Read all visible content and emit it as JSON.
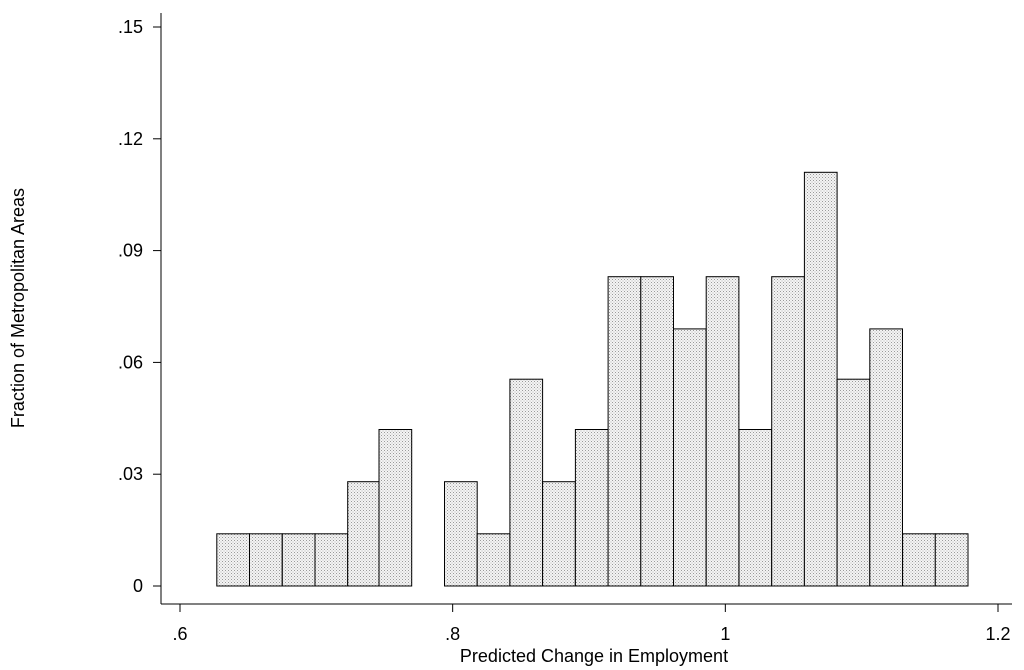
{
  "chart_data": {
    "type": "bar",
    "title": "",
    "xlabel": "Predicted Change in Employment",
    "ylabel": "Fraction of Metropolitan Areas",
    "xlim": [
      0.6,
      1.2
    ],
    "ylim": [
      0,
      0.15
    ],
    "xticks": [
      {
        "value": 0.6,
        "label": ".6"
      },
      {
        "value": 0.8,
        "label": ".8"
      },
      {
        "value": 1.0,
        "label": "1"
      },
      {
        "value": 1.2,
        "label": "1.2"
      }
    ],
    "yticks": [
      {
        "value": 0,
        "label": "0"
      },
      {
        "value": 0.03,
        "label": ".03"
      },
      {
        "value": 0.06,
        "label": ".06"
      },
      {
        "value": 0.09,
        "label": ".09"
      },
      {
        "value": 0.12,
        "label": ".12"
      },
      {
        "value": 0.15,
        "label": ".15"
      }
    ],
    "bin_width": 0.024,
    "bars": [
      {
        "x0": 0.627,
        "value": 0.014
      },
      {
        "x0": 0.651,
        "value": 0.014
      },
      {
        "x0": 0.675,
        "value": 0.014
      },
      {
        "x0": 0.699,
        "value": 0.014
      },
      {
        "x0": 0.723,
        "value": 0.028
      },
      {
        "x0": 0.746,
        "value": 0.042
      },
      {
        "x0": 0.794,
        "value": 0.028
      },
      {
        "x0": 0.818,
        "value": 0.014
      },
      {
        "x0": 0.842,
        "value": 0.0555
      },
      {
        "x0": 0.866,
        "value": 0.028
      },
      {
        "x0": 0.89,
        "value": 0.042
      },
      {
        "x0": 0.914,
        "value": 0.083
      },
      {
        "x0": 0.938,
        "value": 0.083
      },
      {
        "x0": 0.962,
        "value": 0.069
      },
      {
        "x0": 0.986,
        "value": 0.083
      },
      {
        "x0": 1.01,
        "value": 0.042
      },
      {
        "x0": 1.034,
        "value": 0.083
      },
      {
        "x0": 1.058,
        "value": 0.111
      },
      {
        "x0": 1.082,
        "value": 0.0555
      },
      {
        "x0": 1.106,
        "value": 0.069
      },
      {
        "x0": 1.13,
        "value": 0.014
      },
      {
        "x0": 1.154,
        "value": 0.014
      }
    ],
    "grid": false,
    "legend": "none"
  }
}
